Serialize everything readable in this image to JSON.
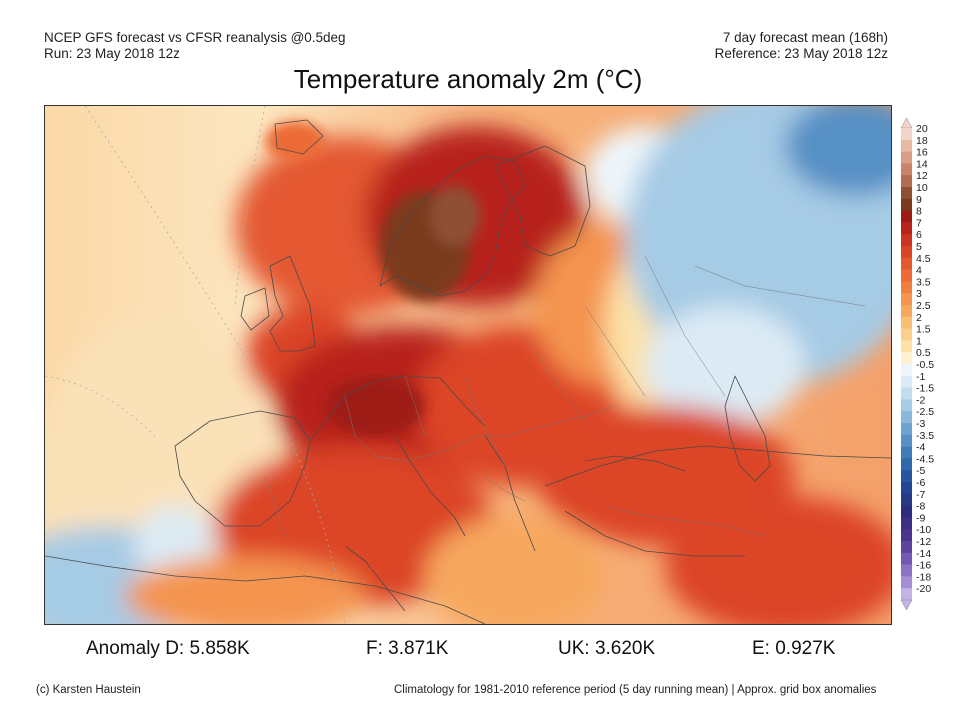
{
  "header": {
    "line1_left": "NCEP GFS forecast vs CFSR reanalysis @0.5deg",
    "line2_left": "Run: 23 May 2018 12z",
    "line1_right": "7 day forecast mean (168h)",
    "line2_right": "Reference: 23 May 2018 12z"
  },
  "title": "Temperature anomaly 2m (°C)",
  "legend": {
    "labels": [
      "20",
      "18",
      "16",
      "14",
      "12",
      "10",
      "9",
      "8",
      "7",
      "6",
      "5",
      "4.5",
      "4",
      "3.5",
      "3",
      "2.5",
      "2",
      "1.5",
      "1",
      "0.5",
      "-0.5",
      "-1",
      "-1.5",
      "-2",
      "-2.5",
      "-3",
      "-3.5",
      "-4",
      "-4.5",
      "-5",
      "-6",
      "-7",
      "-8",
      "-9",
      "-10",
      "-12",
      "-14",
      "-16",
      "-18",
      "-20"
    ],
    "colors": [
      "#f2d5c8",
      "#e8baa6",
      "#d99e86",
      "#c9846a",
      "#b26c52",
      "#8e5034",
      "#7a3a1e",
      "#9e1a14",
      "#b8241a",
      "#cc3320",
      "#dc4426",
      "#e45830",
      "#ec6a36",
      "#f07f42",
      "#f4944f",
      "#f7a85f",
      "#f9bd74",
      "#fbd08d",
      "#fde2a8",
      "#fef2d0",
      "#eef6fb",
      "#dcebf5",
      "#c3dcee",
      "#a6cbe5",
      "#89b8dc",
      "#6ea4d1",
      "#5690c5",
      "#417cba",
      "#3068ad",
      "#2756a0",
      "#234594",
      "#263887",
      "#2c2d7c",
      "#3c2e84",
      "#4c3592",
      "#5d42a1",
      "#7358b4",
      "#8a72c5",
      "#a48fd5",
      "#c2b2e6"
    ]
  },
  "stats": [
    {
      "label": "Anomaly D: 5.858K"
    },
    {
      "label": "F: 3.871K"
    },
    {
      "label": "UK: 3.620K"
    },
    {
      "label": "E: 0.927K"
    }
  ],
  "footer": {
    "credit": "(c) Karsten Haustein",
    "note": "Climatology for 1981-2010 reference period (5 day running mean) | Approx. grid box anomalies"
  }
}
